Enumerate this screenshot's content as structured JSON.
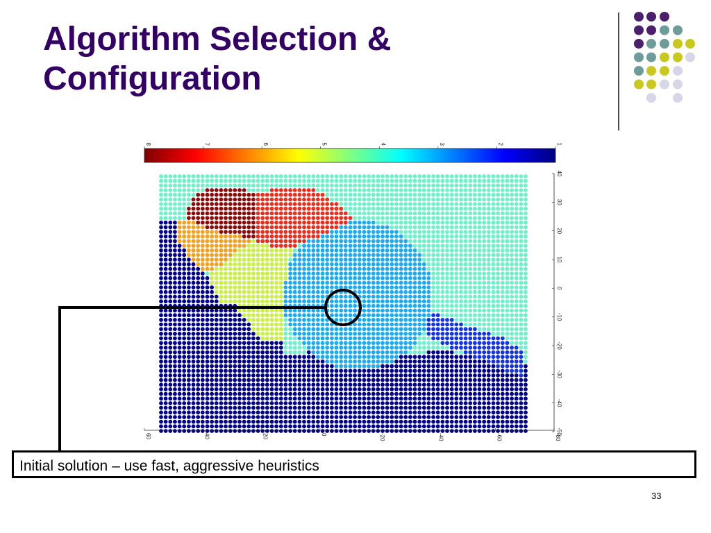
{
  "slide": {
    "title_line1": "Algorithm Selection &",
    "title_line2": "Configuration",
    "callout_text": "Initial solution – use fast, aggressive heuristics",
    "page_number": "33",
    "title_color": "#330066"
  },
  "decoration_colors": {
    "purple": "#4b1f6b",
    "teal": "#6e9c9a",
    "yellow": "#c8c81e",
    "lavender": "#d6d6e8"
  },
  "chart_data": {
    "type": "heatmap",
    "colorbar": {
      "ticks": [
        "8",
        "7",
        "6",
        "5",
        "4",
        "3",
        "2",
        "1"
      ],
      "range": [
        1,
        8
      ]
    },
    "axis_right": {
      "ticks": [
        "40",
        "30",
        "20",
        "10",
        "0",
        "-10",
        "-20",
        "-30",
        "-40",
        "-50"
      ],
      "range": [
        -50,
        40
      ]
    },
    "axis_bottom": {
      "ticks": [
        "60",
        "40",
        "20",
        "0",
        "-20",
        "-40",
        "-60",
        "-80"
      ],
      "range": [
        -80,
        60
      ]
    },
    "regions": [
      {
        "value": 1,
        "color": "#00008c"
      },
      {
        "value": 2,
        "color": "#1432e6"
      },
      {
        "value": 3,
        "color": "#1eaaf0"
      },
      {
        "value": 4,
        "color": "#6ef0c8"
      },
      {
        "value": 5,
        "color": "#c8f046"
      },
      {
        "value": 6,
        "color": "#f5a01e"
      },
      {
        "value": 7,
        "color": "#eb2d1e"
      },
      {
        "value": 8,
        "color": "#8c0a0a"
      }
    ]
  }
}
